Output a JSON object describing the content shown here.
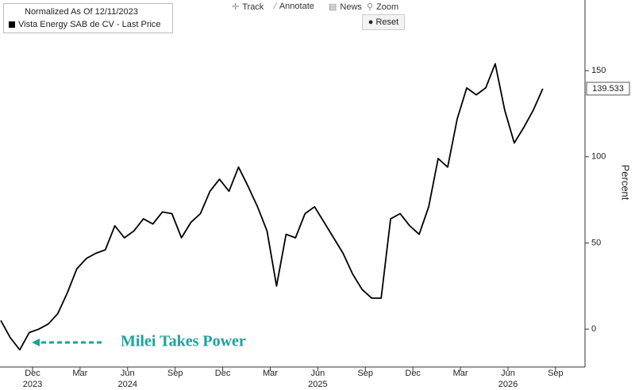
{
  "chart_data": {
    "type": "line",
    "legend_title": "Normalized As Of 12/11/2023",
    "toolbar": [
      "Track",
      "Annotate",
      "News",
      "Zoom",
      "Reset"
    ],
    "y_label": "Percent",
    "annotation": "Milei Takes Power",
    "annotation_color": "#1aa39a",
    "x": [
      2023.75,
      2023.8,
      2023.85,
      2023.9,
      2023.95,
      2024.0,
      2024.05,
      2024.1,
      2024.15,
      2024.2,
      2024.25,
      2024.3,
      2024.35,
      2024.4,
      2024.45,
      2024.5,
      2024.55,
      2024.6,
      2024.65,
      2024.7,
      2024.75,
      2024.8,
      2024.85,
      2024.9,
      2024.95,
      2025.0,
      2025.05,
      2025.1,
      2025.15,
      2025.2,
      2025.25,
      2025.3,
      2025.35,
      2025.4,
      2025.45,
      2025.5,
      2025.55,
      2025.6,
      2025.65,
      2025.7,
      2025.75,
      2025.8,
      2025.85,
      2025.9,
      2025.95,
      2026.0,
      2026.05,
      2026.1,
      2026.15,
      2026.2,
      2026.25,
      2026.3,
      2026.35,
      2026.4,
      2026.45,
      2026.5,
      2026.55,
      2026.6
    ],
    "series": [
      {
        "name": "Vista Energy SAB de CV - Last Price",
        "color": "#000000",
        "values": [
          5,
          -5,
          -12,
          -2,
          0,
          3,
          9,
          21,
          35,
          41,
          44,
          46,
          60,
          53,
          57,
          64,
          61,
          68,
          67,
          53,
          62,
          67,
          80,
          87,
          80,
          94,
          83,
          71,
          57,
          25,
          55,
          53,
          67,
          71,
          62,
          53,
          44,
          32,
          23,
          18,
          18,
          64,
          67,
          60,
          55,
          71,
          99,
          94,
          122,
          140,
          136,
          140,
          154,
          127,
          108,
          117,
          127,
          139.533
        ]
      }
    ],
    "xlim": [
      2023.746,
      2026.822
    ],
    "xticks": [
      {
        "value": 2023.917,
        "label": "Dec"
      },
      {
        "value": 2024.167,
        "label": "Mar"
      },
      {
        "value": 2024.417,
        "label": "Jun"
      },
      {
        "value": 2024.667,
        "label": "Sep"
      },
      {
        "value": 2024.917,
        "label": "Dec"
      },
      {
        "value": 2025.167,
        "label": "Mar"
      },
      {
        "value": 2025.417,
        "label": "Jun"
      },
      {
        "value": 2025.667,
        "label": "Sep"
      },
      {
        "value": 2025.917,
        "label": "Dec"
      },
      {
        "value": 2026.167,
        "label": "Mar"
      },
      {
        "value": 2026.417,
        "label": "Jun"
      },
      {
        "value": 2026.667,
        "label": "Sep"
      }
    ],
    "year_labels": [
      {
        "value": 2023.917,
        "label": "2023"
      },
      {
        "value": 2024.417,
        "label": "2024"
      },
      {
        "value": 2025.417,
        "label": "2025"
      },
      {
        "value": 2026.417,
        "label": "2026"
      }
    ],
    "ylim": [
      -22,
      191
    ],
    "yticks": [
      0,
      50,
      100,
      150
    ]
  }
}
